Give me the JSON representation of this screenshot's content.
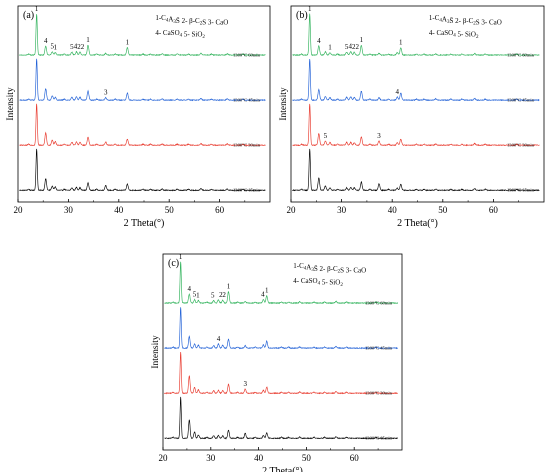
{
  "figure": {
    "panels": [
      {
        "id": "a",
        "panel_label": "(a)",
        "legend_line1": "1-C4A3S̄   2- β-C2S   3- CaO",
        "legend_line2": "4- CaSO4   5- SiO2"
      },
      {
        "id": "b",
        "panel_label": "(b)",
        "legend_line1": "1-C4A3S̄   2- β-C2S   3- CaO",
        "legend_line2": "4- CaSO4   5- SiO2"
      },
      {
        "id": "c",
        "panel_label": "(c)",
        "legend_line1": "1-C4A3S̄   2- β-C2S   3- CaO",
        "legend_line2": "4- CaSO4   5- SiO2"
      }
    ]
  },
  "chart_data": [
    {
      "type": "line",
      "panel_label": "(a)",
      "xlabel": "2 Theta(°)",
      "ylabel": "Intensity",
      "xlim": [
        20,
        70
      ],
      "xticks": [
        20,
        30,
        40,
        50,
        60
      ],
      "series": [
        {
          "name": "1300°C 15min",
          "color": "#000000"
        },
        {
          "name": "1300°C 30min",
          "color": "#e8392d"
        },
        {
          "name": "1300°C 45min",
          "color": "#1f5fd6"
        },
        {
          "name": "1300°C 60min",
          "color": "#2fb25a"
        }
      ],
      "peaks": [
        {
          "x": 23.7,
          "h": [
            1.0,
            1.0,
            1.0,
            1.0
          ]
        },
        {
          "x": 25.5,
          "h": [
            0.28,
            0.3,
            0.28,
            0.22
          ]
        },
        {
          "x": 26.8,
          "h": [
            0.1,
            0.12,
            0.1,
            0.08
          ]
        },
        {
          "x": 27.4,
          "h": [
            0.08,
            0.09,
            0.07,
            0.06
          ]
        },
        {
          "x": 30.7,
          "h": [
            0.06,
            0.07,
            0.07,
            0.07
          ]
        },
        {
          "x": 31.6,
          "h": [
            0.07,
            0.08,
            0.08,
            0.08
          ]
        },
        {
          "x": 32.3,
          "h": [
            0.06,
            0.07,
            0.07,
            0.07
          ]
        },
        {
          "x": 33.9,
          "h": [
            0.18,
            0.2,
            0.22,
            0.24
          ]
        },
        {
          "x": 37.4,
          "h": [
            0.12,
            0.08,
            0.06,
            0.04
          ]
        },
        {
          "x": 41.7,
          "h": [
            0.15,
            0.15,
            0.17,
            0.18
          ]
        },
        {
          "x": 48.6,
          "h": [
            0.03,
            0.03,
            0.03,
            0.03
          ]
        },
        {
          "x": 56.3,
          "h": [
            0.04,
            0.04,
            0.04,
            0.04
          ]
        },
        {
          "x": 61.5,
          "h": [
            0.03,
            0.03,
            0.03,
            0.03
          ]
        }
      ],
      "peak_annotations": [
        {
          "x": 23.7,
          "series": 3,
          "label": "1"
        },
        {
          "x": 25.5,
          "series": 3,
          "label": "4"
        },
        {
          "x": 26.8,
          "series": 3,
          "label": "5"
        },
        {
          "x": 27.4,
          "series": 3,
          "label": "1"
        },
        {
          "x": 30.7,
          "series": 3,
          "label": "5"
        },
        {
          "x": 31.4,
          "series": 3,
          "label": "4"
        },
        {
          "x": 32.1,
          "series": 3,
          "label": "2"
        },
        {
          "x": 32.8,
          "series": 3,
          "label": "2"
        },
        {
          "x": 33.9,
          "series": 3,
          "label": "1"
        },
        {
          "x": 41.7,
          "series": 3,
          "label": "1"
        },
        {
          "x": 37.4,
          "series": 2,
          "label": "3"
        }
      ]
    },
    {
      "type": "line",
      "panel_label": "(b)",
      "xlabel": "2 Theta(°)",
      "ylabel": "Intensity",
      "xlim": [
        20,
        70
      ],
      "xticks": [
        20,
        30,
        40,
        50,
        60
      ],
      "series": [
        {
          "name": "1300°C 15min",
          "color": "#000000"
        },
        {
          "name": "1300°C 30min",
          "color": "#e8392d"
        },
        {
          "name": "1300°C 45min",
          "color": "#1f5fd6"
        },
        {
          "name": "1300°C 60min",
          "color": "#2fb25a"
        }
      ],
      "peaks": [
        {
          "x": 23.7,
          "h": [
            1.0,
            1.0,
            1.0,
            1.0
          ]
        },
        {
          "x": 25.5,
          "h": [
            0.3,
            0.28,
            0.26,
            0.22
          ]
        },
        {
          "x": 26.8,
          "h": [
            0.1,
            0.1,
            0.09,
            0.08
          ]
        },
        {
          "x": 27.7,
          "h": [
            0.06,
            0.07,
            0.06,
            0.06
          ]
        },
        {
          "x": 31.0,
          "h": [
            0.06,
            0.07,
            0.07,
            0.07
          ]
        },
        {
          "x": 31.8,
          "h": [
            0.07,
            0.07,
            0.08,
            0.08
          ]
        },
        {
          "x": 32.5,
          "h": [
            0.06,
            0.06,
            0.07,
            0.07
          ]
        },
        {
          "x": 33.9,
          "h": [
            0.2,
            0.2,
            0.22,
            0.24
          ]
        },
        {
          "x": 37.4,
          "h": [
            0.16,
            0.1,
            0.06,
            0.04
          ]
        },
        {
          "x": 41.0,
          "h": [
            0.05,
            0.06,
            0.08,
            0.06
          ]
        },
        {
          "x": 41.7,
          "h": [
            0.15,
            0.15,
            0.17,
            0.18
          ]
        },
        {
          "x": 48.6,
          "h": [
            0.03,
            0.03,
            0.03,
            0.03
          ]
        },
        {
          "x": 56.3,
          "h": [
            0.04,
            0.04,
            0.04,
            0.04
          ]
        }
      ],
      "peak_annotations": [
        {
          "x": 23.7,
          "series": 3,
          "label": "1"
        },
        {
          "x": 25.5,
          "series": 3,
          "label": "4"
        },
        {
          "x": 27.7,
          "series": 3,
          "label": "1"
        },
        {
          "x": 31.0,
          "series": 3,
          "label": "5"
        },
        {
          "x": 31.7,
          "series": 3,
          "label": "4"
        },
        {
          "x": 32.4,
          "series": 3,
          "label": "2"
        },
        {
          "x": 33.1,
          "series": 3,
          "label": "2"
        },
        {
          "x": 33.9,
          "series": 3,
          "label": "1"
        },
        {
          "x": 41.7,
          "series": 3,
          "label": "1"
        },
        {
          "x": 41.0,
          "series": 2,
          "label": "4"
        },
        {
          "x": 26.8,
          "series": 1,
          "label": "5"
        },
        {
          "x": 37.4,
          "series": 1,
          "label": "3"
        }
      ]
    },
    {
      "type": "line",
      "panel_label": "(c)",
      "xlabel": "2 Theta(°)",
      "ylabel": "Intensity",
      "xlim": [
        20,
        70
      ],
      "xticks": [
        20,
        30,
        40,
        50,
        60
      ],
      "series": [
        {
          "name": "1300°C 15min",
          "color": "#000000"
        },
        {
          "name": "1300°C 30min",
          "color": "#e8392d"
        },
        {
          "name": "1300°C 45min",
          "color": "#1f5fd6"
        },
        {
          "name": "1300°C 60min",
          "color": "#2fb25a"
        }
      ],
      "peaks": [
        {
          "x": 23.7,
          "h": [
            1.0,
            1.0,
            1.0,
            1.0
          ]
        },
        {
          "x": 25.5,
          "h": [
            0.45,
            0.42,
            0.28,
            0.22
          ]
        },
        {
          "x": 26.6,
          "h": [
            0.15,
            0.14,
            0.1,
            0.08
          ]
        },
        {
          "x": 27.4,
          "h": [
            0.08,
            0.08,
            0.07,
            0.06
          ]
        },
        {
          "x": 30.6,
          "h": [
            0.06,
            0.06,
            0.06,
            0.06
          ]
        },
        {
          "x": 31.6,
          "h": [
            0.07,
            0.07,
            0.1,
            0.08
          ]
        },
        {
          "x": 32.5,
          "h": [
            0.06,
            0.06,
            0.07,
            0.07
          ]
        },
        {
          "x": 33.7,
          "h": [
            0.2,
            0.22,
            0.22,
            0.28
          ]
        },
        {
          "x": 37.2,
          "h": [
            0.12,
            0.1,
            0.06,
            0.04
          ]
        },
        {
          "x": 41.0,
          "h": [
            0.07,
            0.07,
            0.08,
            0.08
          ]
        },
        {
          "x": 41.7,
          "h": [
            0.13,
            0.15,
            0.17,
            0.18
          ]
        },
        {
          "x": 48.6,
          "h": [
            0.03,
            0.03,
            0.03,
            0.03
          ]
        },
        {
          "x": 56.2,
          "h": [
            0.04,
            0.04,
            0.04,
            0.04
          ]
        }
      ],
      "peak_annotations": [
        {
          "x": 23.7,
          "series": 3,
          "label": "1"
        },
        {
          "x": 25.5,
          "series": 3,
          "label": "4"
        },
        {
          "x": 26.6,
          "series": 3,
          "label": "5"
        },
        {
          "x": 27.3,
          "series": 3,
          "label": "1"
        },
        {
          "x": 30.4,
          "series": 3,
          "label": "5"
        },
        {
          "x": 32.1,
          "series": 3,
          "label": "2"
        },
        {
          "x": 32.8,
          "series": 3,
          "label": "2"
        },
        {
          "x": 33.7,
          "series": 3,
          "label": "1"
        },
        {
          "x": 40.9,
          "series": 3,
          "label": "4"
        },
        {
          "x": 41.7,
          "series": 3,
          "label": "1"
        },
        {
          "x": 31.6,
          "series": 2,
          "label": "4"
        },
        {
          "x": 37.2,
          "series": 1,
          "label": "3"
        }
      ]
    }
  ]
}
